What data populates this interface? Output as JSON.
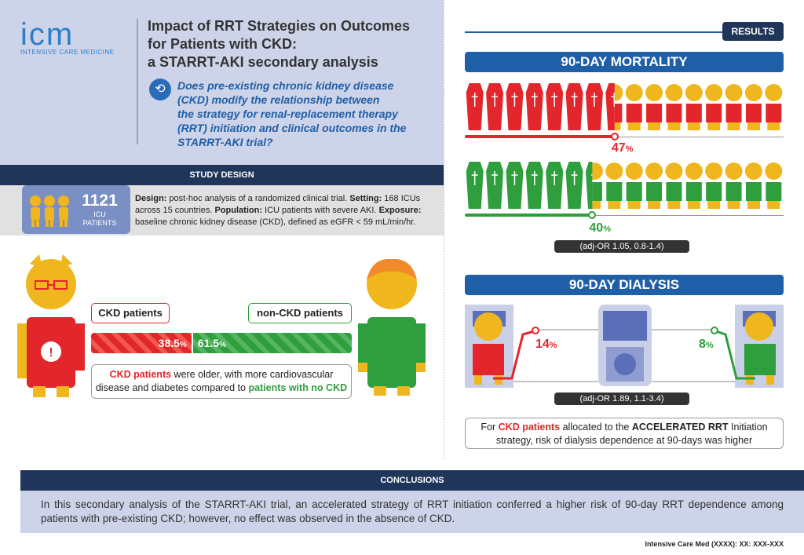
{
  "header": {
    "logo_main": "icm",
    "logo_sub": "INTENSIVE CARE MEDICINE",
    "title_lines": [
      "Impact of RRT Strategies on Outcomes",
      "for Patients with CKD:",
      "a STARRT-AKI secondary analysis"
    ],
    "question_lines": [
      "Does pre-existing chronic kidney disease",
      "(CKD) modify the relationship between",
      "the strategy for renal-replacement therapy",
      "(RRT) initiation and clinical outcomes in the",
      "STARRT-AKI trial?"
    ]
  },
  "study_design": {
    "heading": "STUDY DESIGN",
    "count": "1121",
    "count_label_1": "ICU",
    "count_label_2": "PATIENTS",
    "design_label": "Design:",
    "design_text": " post-hoc analysis of a randomized clinical trial. ",
    "setting_label": "Setting:",
    "setting_text": " 168 ICUs across 15 countries. ",
    "population_label": "Population:",
    "population_text": " ICU patients with severe AKI. ",
    "exposure_label": "Exposure:",
    "exposure_text": " baseline chronic kidney disease (CKD), defined as eGFR < 59 mL/min/hr."
  },
  "groups": {
    "ckd_label": "CKD patients",
    "nonckd_label": "non-CKD patients",
    "ckd_share": 38.5,
    "nonckd_share": 61.5,
    "ckd_pct_num": "38.5",
    "nonckd_pct_num": "61.5",
    "pct_sign": "%",
    "note_ckd": "CKD patients",
    "note_mid": " were older, with more cardiovascular disease and diabetes compared to ",
    "note_non": "patients with no CKD"
  },
  "results": {
    "tag": "RESULTS",
    "mortality": {
      "heading": "90-DAY MORTALITY",
      "ckd_value": 47,
      "non_value": 40,
      "ckd_pct_num": "47",
      "non_pct_num": "40",
      "pct_sign": "%",
      "or_text": "(adj-OR 1.05, 0.8-1.4)"
    },
    "dialysis": {
      "heading": "90-DAY DIALYSIS",
      "ckd_pct_num": "14",
      "non_pct_num": "8",
      "pct_sign": "%",
      "or_text": "(adj-OR 1.89, 1.1-3.4)",
      "note_pre": "For ",
      "note_ckd": "CKD patients",
      "note_mid": " allocated to the ",
      "note_accel": "ACCELERATED RRT",
      "note_post": " Initiation strategy, risk of dialysis dependence at 90-days was higher"
    }
  },
  "conclusions": {
    "heading": "CONCLUSIONS",
    "text": "In this secondary analysis of the STARRT-AKI trial, an accelerated strategy of RRT initiation conferred a higher risk of 90-day RRT dependence among patients with pre-existing CKD; however, no effect was observed in the absence of CKD."
  },
  "citation": "Intensive Care Med (XXXX): XX: XXX-XXX",
  "colors": {
    "red": "#e2262b",
    "green": "#2f9e3c",
    "yellow": "#f0b61e",
    "navy": "#1f3559",
    "blue": "#1f5fa8"
  }
}
